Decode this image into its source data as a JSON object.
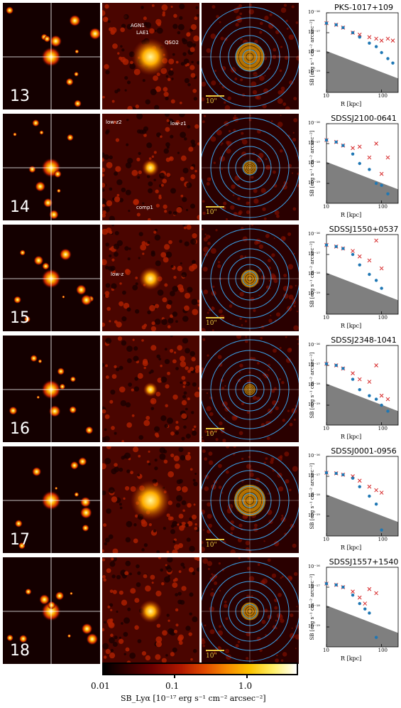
{
  "rows": [
    {
      "number": "13",
      "target": "PKS-1017+109",
      "annotations": [
        "AGN1",
        "LAE1",
        "QSO2"
      ]
    },
    {
      "number": "14",
      "target": "SDSSJ2100-0641",
      "annotations": [
        "low-z2",
        "low-z1",
        "comp1"
      ]
    },
    {
      "number": "15",
      "target": "SDSSJ1550+0537",
      "annotations": [
        "low-z"
      ]
    },
    {
      "number": "16",
      "target": "SDSSJ2348-1041",
      "annotations": []
    },
    {
      "number": "17",
      "target": "SDSSJ0001-0956",
      "annotations": []
    },
    {
      "number": "18",
      "target": "SDSSJ1557+1540",
      "annotations": []
    }
  ],
  "scalebar_label": "10\"",
  "profile_axes": {
    "ylabel": "SB [erg s⁻¹ cm⁻² arcsec⁻²]",
    "xlabel": "R [kpc]",
    "xticks": [
      "10",
      "100"
    ],
    "yticks": [
      "10⁻¹⁶",
      "10⁻¹⁷",
      "10⁻¹⁸",
      "10⁻¹⁹"
    ]
  },
  "colorbar": {
    "ticks": [
      "0.01",
      "0.1",
      "1.0"
    ],
    "label": "SB_Lyα [10⁻¹⁷ erg s⁻¹ cm⁻² arcsec⁻²]"
  },
  "colors": {
    "marker_red": "#d62728",
    "marker_blue": "#1f77b4",
    "circle": "#3aa0e8",
    "shade": "#7f7f7f"
  },
  "chart_data": [
    {
      "type": "scatter",
      "title": "PKS-1017+109",
      "xlabel": "R [kpc]",
      "ylabel": "SB [erg s⁻¹ cm⁻² arcsec⁻²]",
      "xscale": "log",
      "yscale": "log",
      "xlim": [
        10,
        200
      ],
      "ylim": [
        1e-20,
        1e-16
      ],
      "series": [
        {
          "values": [
            [
              10,
              3e-17
            ],
            [
              15,
              2.5e-17
            ],
            [
              20,
              1.8e-17
            ],
            [
              30,
              1e-17
            ],
            [
              40,
              8e-18
            ],
            [
              60,
              6e-18
            ],
            [
              80,
              5e-18
            ],
            [
              100,
              4e-18
            ],
            [
              130,
              5e-18
            ],
            [
              160,
              4e-18
            ]
          ]
        },
        {
          "values": [
            [
              10,
              3e-17
            ],
            [
              15,
              2.5e-17
            ],
            [
              20,
              1.8e-17
            ],
            [
              30,
              1e-17
            ],
            [
              40,
              6e-18
            ],
            [
              60,
              3e-18
            ],
            [
              80,
              2e-18
            ],
            [
              100,
              1e-18
            ],
            [
              130,
              5e-19
            ],
            [
              160,
              3e-19
            ]
          ]
        }
      ]
    },
    {
      "type": "scatter",
      "title": "SDSSJ2100-0641",
      "xlabel": "R [kpc]",
      "ylabel": "SB [erg s⁻¹ cm⁻² arcsec⁻²]",
      "xscale": "log",
      "yscale": "log",
      "xlim": [
        10,
        200
      ],
      "ylim": [
        1e-20,
        1e-16
      ],
      "series": [
        {
          "values": [
            [
              10,
              1.5e-17
            ],
            [
              15,
              1.2e-17
            ],
            [
              20,
              8e-18
            ],
            [
              30,
              6e-18
            ],
            [
              40,
              7e-18
            ],
            [
              60,
              2e-18
            ],
            [
              80,
              1e-17
            ],
            [
              100,
              3e-19
            ],
            [
              130,
              2e-18
            ]
          ]
        },
        {
          "values": [
            [
              10,
              1.5e-17
            ],
            [
              15,
              1.2e-17
            ],
            [
              20,
              8e-18
            ],
            [
              30,
              3e-18
            ],
            [
              40,
              1e-18
            ],
            [
              60,
              5e-19
            ],
            [
              80,
              1e-19
            ],
            [
              100,
              8e-20
            ],
            [
              130,
              3e-20
            ]
          ]
        }
      ]
    },
    {
      "type": "scatter",
      "title": "SDSSJ1550+0537",
      "xlabel": "R [kpc]",
      "ylabel": "SB [erg s⁻¹ cm⁻² arcsec⁻²]",
      "xscale": "log",
      "yscale": "log",
      "xlim": [
        10,
        200
      ],
      "ylim": [
        1e-20,
        1e-16
      ],
      "series": [
        {
          "values": [
            [
              10,
              3e-17
            ],
            [
              15,
              2.5e-17
            ],
            [
              20,
              2e-17
            ],
            [
              30,
              1.5e-17
            ],
            [
              40,
              8e-18
            ],
            [
              60,
              5e-18
            ],
            [
              80,
              5e-17
            ],
            [
              100,
              2e-18
            ]
          ]
        },
        {
          "values": [
            [
              10,
              3e-17
            ],
            [
              15,
              2.5e-17
            ],
            [
              20,
              2e-17
            ],
            [
              30,
              1e-17
            ],
            [
              40,
              3e-18
            ],
            [
              60,
              1e-18
            ],
            [
              80,
              5e-19
            ],
            [
              100,
              2e-19
            ]
          ]
        }
      ]
    },
    {
      "type": "scatter",
      "title": "SDSSJ2348-1041",
      "xlabel": "R [kpc]",
      "ylabel": "SB [erg s⁻¹ cm⁻² arcsec⁻²]",
      "xscale": "log",
      "yscale": "log",
      "xlim": [
        10,
        200
      ],
      "ylim": [
        1e-20,
        1e-16
      ],
      "series": [
        {
          "values": [
            [
              10,
              1.2e-17
            ],
            [
              15,
              1e-17
            ],
            [
              20,
              7e-18
            ],
            [
              30,
              4e-18
            ],
            [
              40,
              2e-18
            ],
            [
              60,
              1.5e-18
            ],
            [
              80,
              1e-17
            ],
            [
              100,
              3e-19
            ],
            [
              130,
              2e-19
            ]
          ]
        },
        {
          "values": [
            [
              10,
              1.2e-17
            ],
            [
              15,
              1e-17
            ],
            [
              20,
              7e-18
            ],
            [
              30,
              2e-18
            ],
            [
              40,
              6e-19
            ],
            [
              60,
              3e-19
            ],
            [
              80,
              2e-19
            ],
            [
              100,
              1e-19
            ],
            [
              130,
              5e-20
            ]
          ]
        }
      ]
    },
    {
      "type": "scatter",
      "title": "SDSSJ0001-0956",
      "xlabel": "R [kpc]",
      "ylabel": "SB [erg s⁻¹ cm⁻² arcsec⁻²]",
      "xscale": "log",
      "yscale": "log",
      "xlim": [
        10,
        200
      ],
      "ylim": [
        1e-20,
        1e-16
      ],
      "series": [
        {
          "values": [
            [
              10,
              1.5e-17
            ],
            [
              15,
              1.4e-17
            ],
            [
              20,
              1.2e-17
            ],
            [
              30,
              1e-17
            ],
            [
              40,
              6e-18
            ],
            [
              60,
              3e-18
            ],
            [
              80,
              2e-18
            ],
            [
              100,
              1.5e-18
            ]
          ]
        },
        {
          "values": [
            [
              10,
              1.5e-17
            ],
            [
              15,
              1.4e-17
            ],
            [
              20,
              1.2e-17
            ],
            [
              30,
              8e-18
            ],
            [
              40,
              3e-18
            ],
            [
              60,
              1e-18
            ],
            [
              80,
              4e-19
            ],
            [
              100,
              2e-20
            ]
          ]
        }
      ]
    },
    {
      "type": "scatter",
      "title": "SDSSJ1557+1540",
      "xlabel": "R [kpc]",
      "ylabel": "SB [erg s⁻¹ cm⁻² arcsec⁻²]",
      "xscale": "log",
      "yscale": "log",
      "xlim": [
        10,
        200
      ],
      "ylim": [
        1e-20,
        1e-16
      ],
      "series": [
        {
          "values": [
            [
              10,
              1.5e-17
            ],
            [
              15,
              1.3e-17
            ],
            [
              20,
              1e-17
            ],
            [
              30,
              6e-18
            ],
            [
              40,
              3e-18
            ],
            [
              50,
              1.5e-18
            ],
            [
              60,
              8e-18
            ],
            [
              80,
              5e-18
            ]
          ]
        },
        {
          "values": [
            [
              10,
              1.5e-17
            ],
            [
              15,
              1.3e-17
            ],
            [
              20,
              1e-17
            ],
            [
              30,
              4e-18
            ],
            [
              40,
              1.5e-18
            ],
            [
              50,
              8e-19
            ],
            [
              60,
              5e-19
            ],
            [
              80,
              3e-20
            ]
          ]
        }
      ]
    }
  ]
}
